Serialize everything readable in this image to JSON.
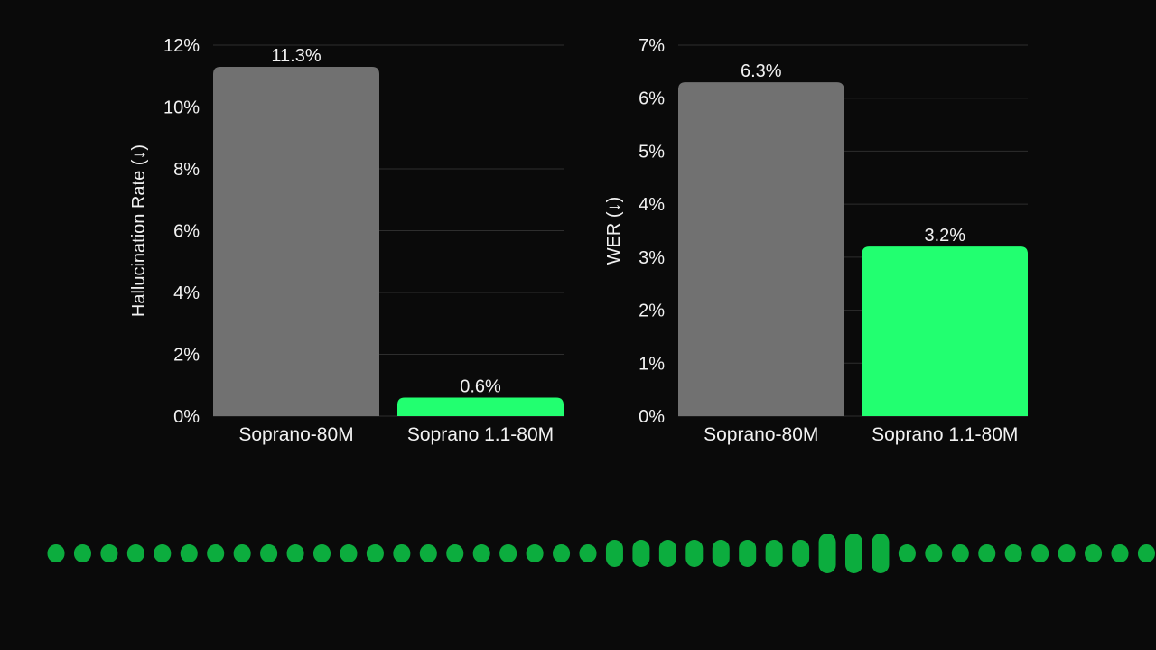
{
  "colors": {
    "background": "#0a0a0a",
    "bar_gray": "#717171",
    "bar_green": "#22ff70",
    "wave_green": "#0cad3e",
    "grid": "#2e2e2e",
    "text": "#f2f2f2"
  },
  "chart_data": [
    {
      "type": "bar",
      "title": "",
      "xlabel": "",
      "ylabel": "Hallucination Rate (↓)",
      "categories": [
        "Soprano-80M",
        "Soprano 1.1-80M"
      ],
      "values": [
        11.3,
        0.6
      ],
      "value_labels": [
        "11.3%",
        "0.6%"
      ],
      "bar_colors": [
        "#717171",
        "#22ff70"
      ],
      "ylim": [
        0,
        12
      ],
      "yticks": [
        0,
        2,
        4,
        6,
        8,
        10,
        12
      ],
      "ytick_labels": [
        "0%",
        "2%",
        "4%",
        "6%",
        "8%",
        "10%",
        "12%"
      ],
      "grid": true
    },
    {
      "type": "bar",
      "title": "",
      "xlabel": "",
      "ylabel": "WER (↓)",
      "categories": [
        "Soprano-80M",
        "Soprano 1.1-80M"
      ],
      "values": [
        6.3,
        3.2
      ],
      "value_labels": [
        "6.3%",
        "3.2%"
      ],
      "bar_colors": [
        "#717171",
        "#22ff70"
      ],
      "ylim": [
        0,
        7
      ],
      "yticks": [
        0,
        1,
        2,
        3,
        4,
        5,
        6,
        7
      ],
      "ytick_labels": [
        "0%",
        "1%",
        "2%",
        "3%",
        "4%",
        "5%",
        "6%",
        "7%"
      ],
      "grid": true
    }
  ],
  "waveform": {
    "levels": [
      0,
      0,
      0,
      0,
      0,
      0,
      0,
      0,
      0,
      0,
      0,
      0,
      0,
      0,
      0,
      0,
      0,
      0,
      0,
      0,
      0,
      2,
      2,
      2,
      2,
      2,
      2,
      2,
      2,
      1,
      1,
      1,
      0,
      0,
      0,
      0,
      0,
      0,
      0,
      0,
      0,
      0
    ]
  }
}
